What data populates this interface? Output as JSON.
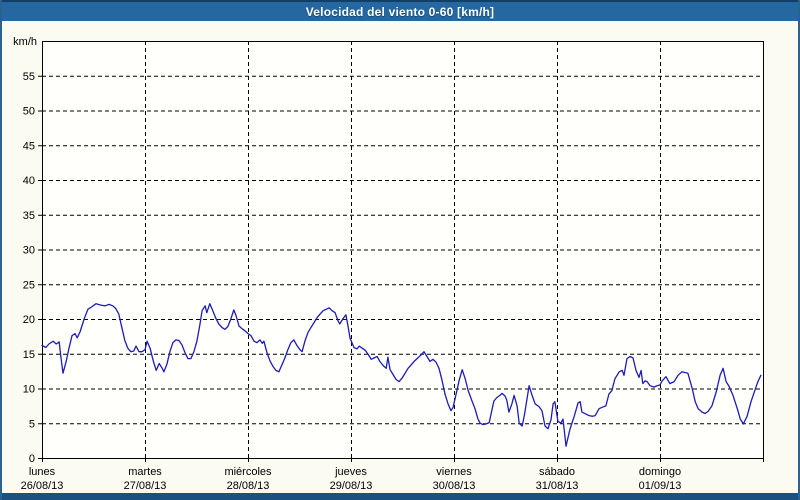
{
  "window": {
    "title": "Velocidad del viento 0-60 [km/h]"
  },
  "colors": {
    "titlebar_bg": "#2467a1",
    "frame_border": "#2a628f",
    "bottom_strip": "#1b5180",
    "content_bg": "#fbfbf2",
    "plot_bg": "#fffffc",
    "grid": "#000000",
    "axis": "#000000",
    "series_line": "#1c1cb8",
    "title_text": "#ffffff"
  },
  "chart_data": {
    "type": "line",
    "title": "Velocidad del viento 0-60 [km/h]",
    "ylabel": "km/h",
    "ylim": [
      0,
      60
    ],
    "yticks": [
      0,
      5,
      10,
      15,
      20,
      25,
      30,
      35,
      40,
      45,
      50,
      55
    ],
    "xlim_hours": [
      0,
      168
    ],
    "grid": "dashed",
    "legend": "none",
    "x_days": [
      {
        "name": "lunes",
        "date": "26/08/13"
      },
      {
        "name": "martes",
        "date": "27/08/13"
      },
      {
        "name": "miércoles",
        "date": "28/08/13"
      },
      {
        "name": "jueves",
        "date": "29/08/13"
      },
      {
        "name": "viernes",
        "date": "30/08/13"
      },
      {
        "name": "sábado",
        "date": "31/08/13"
      },
      {
        "name": "domingo",
        "date": "01/09/13"
      }
    ],
    "series": [
      {
        "name": "Velocidad del viento",
        "units": "km/h",
        "color": "#1c1cb8",
        "points_hours_kmh": [
          [
            0,
            16.2
          ],
          [
            0.9,
            15.9
          ],
          [
            1.6,
            16.4
          ],
          [
            2.6,
            16.8
          ],
          [
            3.3,
            16.4
          ],
          [
            4,
            16.7
          ],
          [
            4.4,
            14.5
          ],
          [
            4.9,
            12.2
          ],
          [
            5.6,
            13.8
          ],
          [
            6.3,
            15.8
          ],
          [
            7,
            17.6
          ],
          [
            7.7,
            17.9
          ],
          [
            8.2,
            17.3
          ],
          [
            8.9,
            18.2
          ],
          [
            9.8,
            20
          ],
          [
            10.7,
            21.4
          ],
          [
            11.7,
            21.8
          ],
          [
            12.6,
            22.2
          ],
          [
            13.7,
            22
          ],
          [
            14.7,
            21.9
          ],
          [
            15.6,
            22.1
          ],
          [
            16.5,
            21.9
          ],
          [
            17.2,
            21.5
          ],
          [
            17.9,
            20.7
          ],
          [
            18.6,
            18.8
          ],
          [
            19.3,
            16.9
          ],
          [
            20,
            15.8
          ],
          [
            20.7,
            15.3
          ],
          [
            21.4,
            15.4
          ],
          [
            21.9,
            16.1
          ],
          [
            22.6,
            15.3
          ],
          [
            23.3,
            15.3
          ],
          [
            24,
            15.6
          ],
          [
            24.5,
            16.8
          ],
          [
            25.2,
            15.8
          ],
          [
            25.9,
            14
          ],
          [
            26.6,
            12.6
          ],
          [
            27.3,
            13.6
          ],
          [
            28,
            12.9
          ],
          [
            28.4,
            12.4
          ],
          [
            29.1,
            13.5
          ],
          [
            29.8,
            15.3
          ],
          [
            30.5,
            16.6
          ],
          [
            31.2,
            17
          ],
          [
            31.9,
            16.9
          ],
          [
            32.6,
            16.3
          ],
          [
            33.3,
            15.2
          ],
          [
            34,
            14.3
          ],
          [
            34.7,
            14.3
          ],
          [
            35.4,
            15.3
          ],
          [
            36.1,
            16.8
          ],
          [
            36.8,
            19.2
          ],
          [
            37.3,
            21.2
          ],
          [
            38,
            21.9
          ],
          [
            38.4,
            20.9
          ],
          [
            39.1,
            22.2
          ],
          [
            39.8,
            21.2
          ],
          [
            40.5,
            20.1
          ],
          [
            41.2,
            19.3
          ],
          [
            41.9,
            18.8
          ],
          [
            42.6,
            18.5
          ],
          [
            43.3,
            18.9
          ],
          [
            44,
            20
          ],
          [
            44.7,
            21.3
          ],
          [
            45.2,
            20.5
          ],
          [
            45.9,
            19
          ],
          [
            46.6,
            18.6
          ],
          [
            47.3,
            18.3
          ],
          [
            48,
            17.9
          ],
          [
            48.7,
            17.6
          ],
          [
            49.4,
            16.8
          ],
          [
            50.1,
            16.6
          ],
          [
            50.8,
            17
          ],
          [
            51.3,
            16.5
          ],
          [
            51.7,
            16.8
          ],
          [
            52.4,
            15.2
          ],
          [
            53.1,
            14
          ],
          [
            53.8,
            13.2
          ],
          [
            54.5,
            12.6
          ],
          [
            55.2,
            12.4
          ],
          [
            55.9,
            13.4
          ],
          [
            56.6,
            14.4
          ],
          [
            57.3,
            15.6
          ],
          [
            58,
            16.6
          ],
          [
            58.7,
            17
          ],
          [
            59.4,
            16.2
          ],
          [
            60.1,
            15.6
          ],
          [
            60.6,
            15.3
          ],
          [
            61.3,
            16.9
          ],
          [
            62,
            18.1
          ],
          [
            62.7,
            18.8
          ],
          [
            63.4,
            19.5
          ],
          [
            64.1,
            20.2
          ],
          [
            64.8,
            20.7
          ],
          [
            65.5,
            21.2
          ],
          [
            66.2,
            21.4
          ],
          [
            66.9,
            21.6
          ],
          [
            67.6,
            21.2
          ],
          [
            68.3,
            20.9
          ],
          [
            69,
            19.7
          ],
          [
            69.4,
            19.3
          ],
          [
            70.1,
            20
          ],
          [
            70.8,
            20.6
          ],
          [
            71.3,
            19
          ],
          [
            71.8,
            17.2
          ],
          [
            72,
            16.9
          ],
          [
            72.7,
            15.9
          ],
          [
            73.4,
            15.7
          ],
          [
            73.9,
            16.1
          ],
          [
            74.6,
            15.8
          ],
          [
            75.3,
            15.5
          ],
          [
            76,
            14.9
          ],
          [
            76.7,
            14.2
          ],
          [
            77.4,
            14.4
          ],
          [
            78.1,
            14.6
          ],
          [
            78.7,
            13.9
          ],
          [
            79.5,
            13.3
          ],
          [
            80.2,
            12.9
          ],
          [
            80.6,
            14.5
          ],
          [
            81.1,
            12.7
          ],
          [
            81.8,
            12
          ],
          [
            82.5,
            11.3
          ],
          [
            83.2,
            11
          ],
          [
            83.9,
            11.5
          ],
          [
            84.6,
            12.2
          ],
          [
            85.3,
            12.9
          ],
          [
            86,
            13.4
          ],
          [
            86.7,
            13.9
          ],
          [
            87.4,
            14.3
          ],
          [
            88.1,
            14.7
          ],
          [
            89,
            15.3
          ],
          [
            89.7,
            14.6
          ],
          [
            90.4,
            13.9
          ],
          [
            91.1,
            14.2
          ],
          [
            91.8,
            13.8
          ],
          [
            92.5,
            12.9
          ],
          [
            93.2,
            11.2
          ],
          [
            93.9,
            9.2
          ],
          [
            94.6,
            7.8
          ],
          [
            95.3,
            6.8
          ],
          [
            95.8,
            7.3
          ],
          [
            96.5,
            9.2
          ],
          [
            97.2,
            11.2
          ],
          [
            97.9,
            12.7
          ],
          [
            98.6,
            11.4
          ],
          [
            99.3,
            9.7
          ],
          [
            100.2,
            8.2
          ],
          [
            100.9,
            7.1
          ],
          [
            101.6,
            5.6
          ],
          [
            102.1,
            5
          ],
          [
            102.8,
            4.8
          ],
          [
            103.5,
            4.9
          ],
          [
            104.2,
            5.1
          ],
          [
            104.9,
            7.1
          ],
          [
            105.3,
            8.2
          ],
          [
            106,
            8.7
          ],
          [
            106.7,
            9
          ],
          [
            107.2,
            9.3
          ],
          [
            107.9,
            8.9
          ],
          [
            108.3,
            8.3
          ],
          [
            108.8,
            6.6
          ],
          [
            109.5,
            7.8
          ],
          [
            110,
            9
          ],
          [
            110.7,
            7.5
          ],
          [
            111.2,
            5
          ],
          [
            111.9,
            4.6
          ],
          [
            112.5,
            6.5
          ],
          [
            113.5,
            10.4
          ],
          [
            114.2,
            9
          ],
          [
            114.9,
            7.8
          ],
          [
            115.8,
            7.4
          ],
          [
            116.5,
            6.8
          ],
          [
            117.2,
            4.6
          ],
          [
            117.9,
            4.2
          ],
          [
            118.6,
            5.5
          ],
          [
            119.1,
            7.8
          ],
          [
            119.5,
            8.1
          ],
          [
            120.2,
            5.3
          ],
          [
            120.9,
            5
          ],
          [
            121.4,
            5.6
          ],
          [
            122.1,
            1.7
          ],
          [
            123,
            4.1
          ],
          [
            124,
            6
          ],
          [
            124.9,
            7.9
          ],
          [
            125.4,
            8.1
          ],
          [
            125.8,
            6.6
          ],
          [
            126.8,
            6.3
          ],
          [
            127.5,
            6.1
          ],
          [
            128.2,
            6
          ],
          [
            128.9,
            6.1
          ],
          [
            129.8,
            7.1
          ],
          [
            130.5,
            7.3
          ],
          [
            131.4,
            7.5
          ],
          [
            132.1,
            9.2
          ],
          [
            132.8,
            9.7
          ],
          [
            133.5,
            11.4
          ],
          [
            134.5,
            12.4
          ],
          [
            135.2,
            12.6
          ],
          [
            135.6,
            11.9
          ],
          [
            136.3,
            14.3
          ],
          [
            137,
            14.6
          ],
          [
            137.7,
            14.4
          ],
          [
            138.4,
            12.6
          ],
          [
            139.1,
            11.6
          ],
          [
            139.6,
            12.6
          ],
          [
            140,
            10.7
          ],
          [
            140.5,
            11.1
          ],
          [
            141,
            11
          ],
          [
            141.7,
            10.4
          ],
          [
            142.6,
            10.2
          ],
          [
            143.3,
            10.4
          ],
          [
            144,
            10.5
          ],
          [
            144.5,
            11.1
          ],
          [
            145.4,
            11.7
          ],
          [
            146.3,
            10.7
          ],
          [
            147.3,
            11
          ],
          [
            148.2,
            11.9
          ],
          [
            149.1,
            12.4
          ],
          [
            149.8,
            12.3
          ],
          [
            150.5,
            12.2
          ],
          [
            151.5,
            10
          ],
          [
            152.2,
            8.1
          ],
          [
            152.9,
            7.1
          ],
          [
            153.8,
            6.6
          ],
          [
            154.5,
            6.4
          ],
          [
            155.2,
            6.7
          ],
          [
            156.1,
            7.5
          ],
          [
            157.1,
            9.5
          ],
          [
            158,
            11.9
          ],
          [
            158.7,
            12.9
          ],
          [
            159.4,
            11
          ],
          [
            160.1,
            10.3
          ],
          [
            161,
            9
          ],
          [
            162,
            7.1
          ],
          [
            162.7,
            5.6
          ],
          [
            163.4,
            4.9
          ],
          [
            164.3,
            6
          ],
          [
            165.2,
            8.1
          ],
          [
            166.1,
            9.7
          ],
          [
            166.8,
            11
          ],
          [
            167.5,
            11.9
          ]
        ]
      }
    ]
  }
}
